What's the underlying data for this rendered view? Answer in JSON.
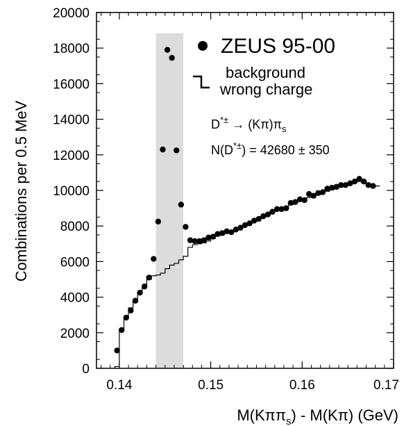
{
  "chart_data": {
    "type": "scatter",
    "xlabel": "M(Kππs) - M(Kπ)  (GeV)",
    "ylabel": "Combinations per 0.5 MeV",
    "xlim": [
      0.1375,
      0.17
    ],
    "ylim": [
      0,
      20000
    ],
    "x_ticks": [
      "0.14",
      "0.15",
      "0.16",
      "0.17"
    ],
    "y_ticks": [
      "0",
      "2000",
      "4000",
      "6000",
      "8000",
      "10000",
      "12000",
      "14000",
      "16000",
      "18000",
      "20000"
    ],
    "signal_region": [
      0.144,
      0.147
    ],
    "legend": {
      "data_label": "ZEUS 95-00",
      "background_label_line1": "background",
      "background_label_line2": "wrong charge",
      "decay": "D*± → (Kπ)πs",
      "yield": "N(D*±) = 42680 ± 350"
    },
    "series": [
      {
        "name": "ZEUS 95-00",
        "style": "markers",
        "color": "#000000",
        "points": [
          [
            0.13975,
            1000
          ],
          [
            0.14025,
            2150
          ],
          [
            0.14075,
            2850
          ],
          [
            0.14125,
            3250
          ],
          [
            0.14175,
            3800
          ],
          [
            0.14225,
            4250
          ],
          [
            0.14275,
            4600
          ],
          [
            0.14325,
            5100
          ],
          [
            0.14375,
            6150
          ],
          [
            0.14425,
            8250
          ],
          [
            0.14475,
            12300
          ],
          [
            0.14525,
            17900
          ],
          [
            0.14575,
            17450
          ],
          [
            0.14625,
            12250
          ],
          [
            0.14675,
            9200
          ],
          [
            0.14725,
            7950
          ],
          [
            0.14775,
            7200
          ],
          [
            0.14825,
            7150
          ],
          [
            0.14875,
            7150
          ],
          [
            0.14925,
            7200
          ],
          [
            0.14975,
            7350
          ],
          [
            0.15025,
            7400
          ],
          [
            0.15075,
            7550
          ],
          [
            0.15125,
            7600
          ],
          [
            0.15175,
            7700
          ],
          [
            0.15225,
            7650
          ],
          [
            0.15275,
            7800
          ],
          [
            0.15325,
            7900
          ],
          [
            0.15375,
            8050
          ],
          [
            0.15425,
            8150
          ],
          [
            0.15475,
            8300
          ],
          [
            0.15525,
            8400
          ],
          [
            0.15575,
            8550
          ],
          [
            0.15625,
            8650
          ],
          [
            0.15675,
            8800
          ],
          [
            0.15725,
            8950
          ],
          [
            0.15775,
            8950
          ],
          [
            0.15825,
            9000
          ],
          [
            0.15875,
            9300
          ],
          [
            0.15925,
            9350
          ],
          [
            0.15975,
            9500
          ],
          [
            0.16025,
            9450
          ],
          [
            0.16075,
            9800
          ],
          [
            0.16125,
            9700
          ],
          [
            0.16175,
            9850
          ],
          [
            0.16225,
            9900
          ],
          [
            0.16275,
            10100
          ],
          [
            0.16325,
            10150
          ],
          [
            0.16375,
            10200
          ],
          [
            0.16425,
            10300
          ],
          [
            0.16475,
            10300
          ],
          [
            0.16525,
            10400
          ],
          [
            0.16575,
            10500
          ],
          [
            0.16625,
            10650
          ],
          [
            0.16675,
            10500
          ],
          [
            0.16725,
            10300
          ],
          [
            0.16775,
            10250
          ]
        ]
      },
      {
        "name": "background wrong charge",
        "style": "step",
        "color": "#000000",
        "points": [
          [
            0.13975,
            100
          ],
          [
            0.14025,
            2200
          ],
          [
            0.14075,
            2800
          ],
          [
            0.14125,
            3400
          ],
          [
            0.14175,
            3800
          ],
          [
            0.14225,
            4200
          ],
          [
            0.14275,
            4550
          ],
          [
            0.14325,
            5000
          ],
          [
            0.14375,
            5200
          ],
          [
            0.14425,
            5250
          ],
          [
            0.14475,
            5350
          ],
          [
            0.14525,
            5600
          ],
          [
            0.14575,
            5800
          ],
          [
            0.14625,
            5900
          ],
          [
            0.14675,
            6100
          ],
          [
            0.14725,
            6300
          ],
          [
            0.14775,
            6800
          ],
          [
            0.14825,
            6950
          ],
          [
            0.14875,
            7000
          ],
          [
            0.14925,
            7050
          ],
          [
            0.14975,
            7150
          ],
          [
            0.15025,
            7300
          ],
          [
            0.15075,
            7450
          ],
          [
            0.15125,
            7500
          ],
          [
            0.15175,
            7650
          ],
          [
            0.15225,
            7750
          ],
          [
            0.15275,
            7850
          ],
          [
            0.15325,
            7950
          ],
          [
            0.15375,
            8050
          ],
          [
            0.15425,
            8150
          ],
          [
            0.15475,
            8250
          ],
          [
            0.15525,
            8400
          ],
          [
            0.15575,
            8500
          ],
          [
            0.15625,
            8650
          ],
          [
            0.15675,
            8750
          ],
          [
            0.15725,
            8900
          ],
          [
            0.15775,
            8950
          ],
          [
            0.15825,
            9050
          ],
          [
            0.15875,
            9200
          ],
          [
            0.15925,
            9300
          ],
          [
            0.15975,
            9400
          ],
          [
            0.16025,
            9500
          ],
          [
            0.16075,
            9600
          ],
          [
            0.16125,
            9650
          ],
          [
            0.16175,
            9750
          ],
          [
            0.16225,
            9850
          ],
          [
            0.16275,
            9950
          ],
          [
            0.16325,
            10050
          ],
          [
            0.16375,
            10150
          ],
          [
            0.16425,
            10200
          ],
          [
            0.16475,
            10300
          ],
          [
            0.16525,
            10350
          ],
          [
            0.16575,
            10450
          ],
          [
            0.16625,
            10500
          ],
          [
            0.16675,
            10450
          ],
          [
            0.16725,
            10350
          ],
          [
            0.16775,
            10300
          ],
          [
            0.16825,
            10250
          ]
        ]
      }
    ]
  }
}
